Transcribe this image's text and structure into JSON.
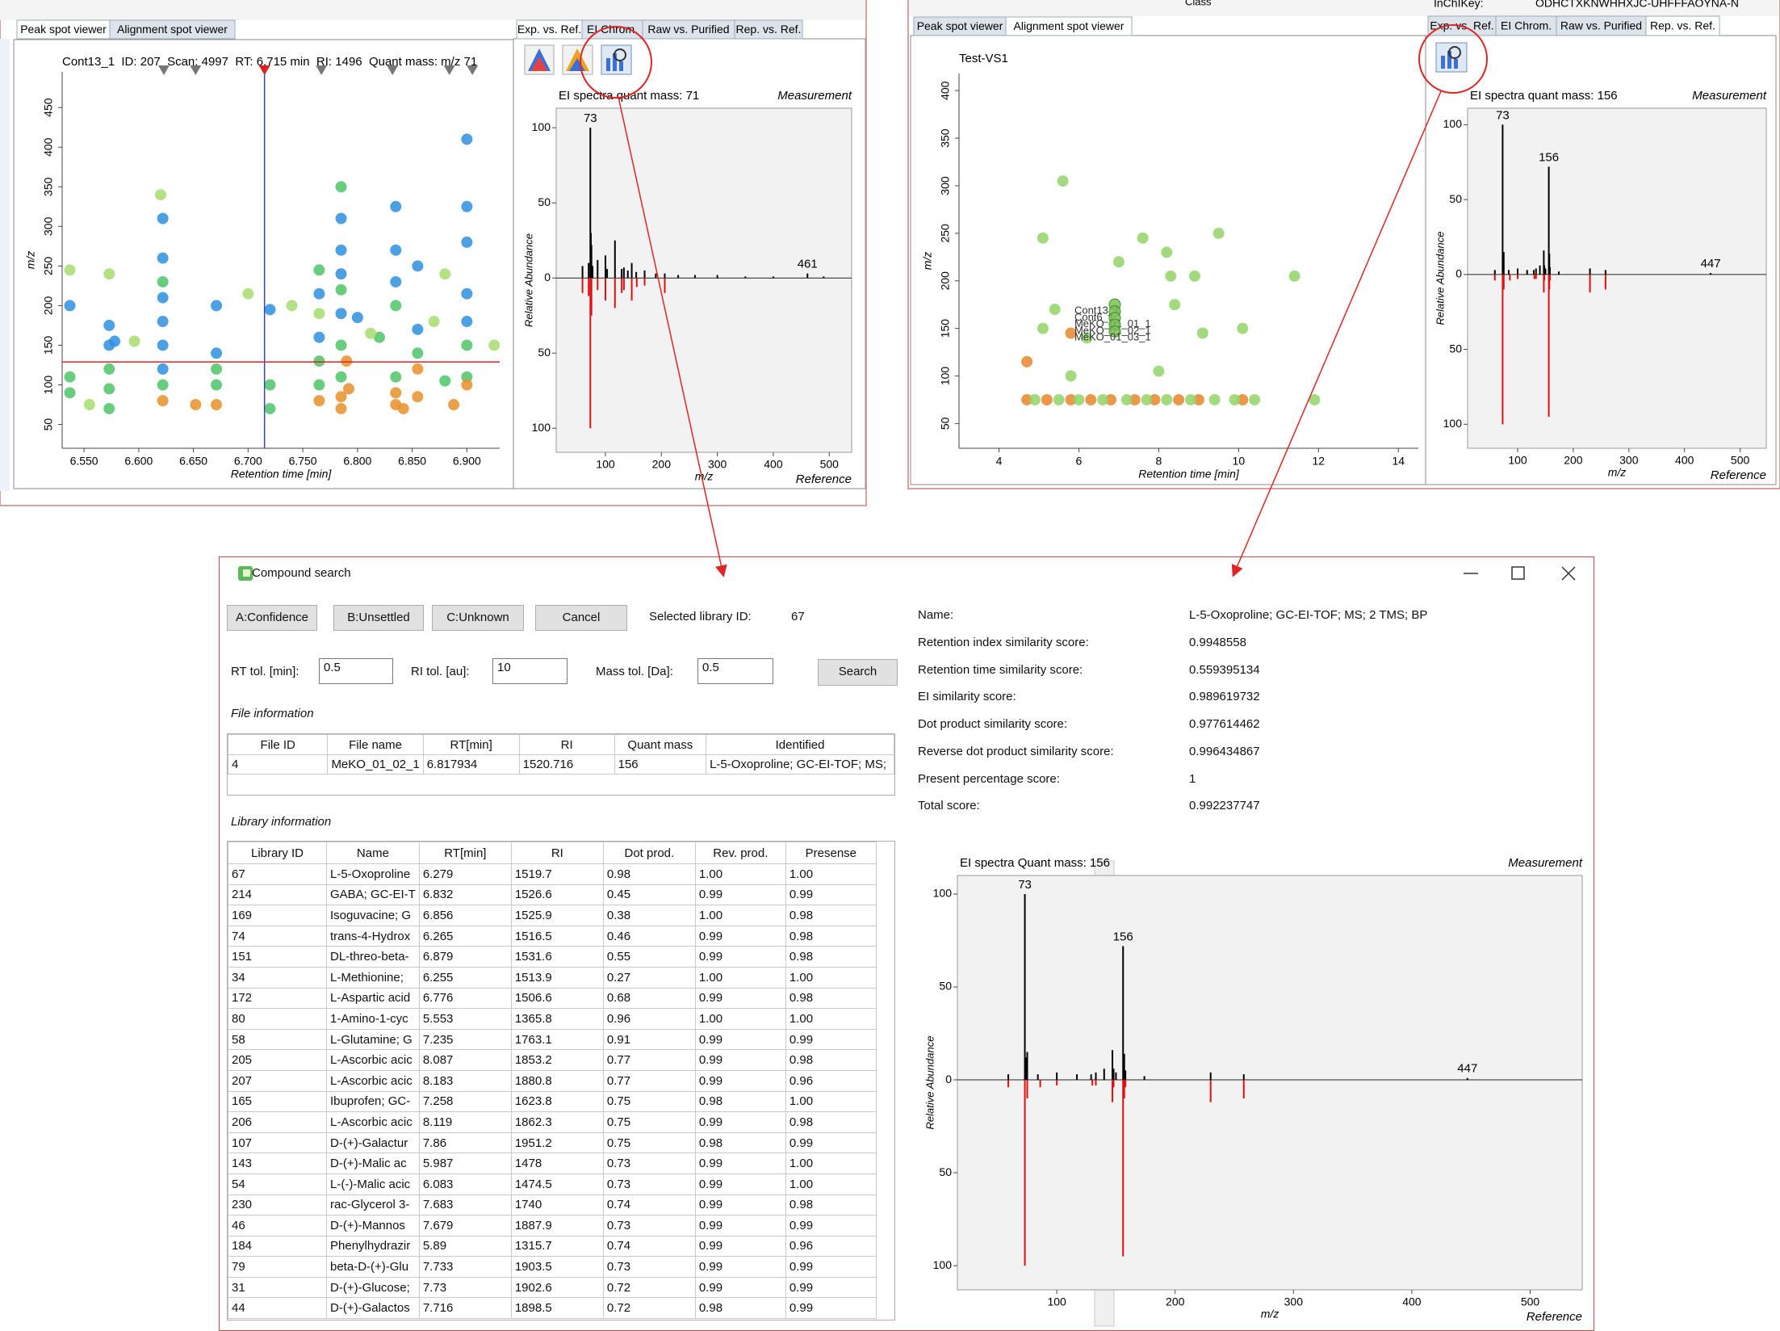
{
  "left_window": {
    "tabs": [
      "Peak spot viewer",
      "Alignment spot viewer"
    ],
    "spectrum_tabs": [
      "Exp. vs. Ref.",
      "EI Chrom.",
      "Raw vs. Purified",
      "Rep. vs. Ref."
    ],
    "scatter": {
      "title": "Cont13_1  ID: 207  Scan: 4997  RT: 6.715 min  RI: 1496  Quant mass: m/z 71",
      "x_label": "Retention time [min]",
      "y_label": "m/z",
      "xlim": [
        6.53,
        6.93
      ],
      "ylim": [
        20,
        495
      ],
      "xticks": [
        {
          "value": 6.55,
          "label": "6.550"
        },
        {
          "value": 6.6,
          "label": "6.600"
        },
        {
          "value": 6.65,
          "label": "6.650"
        },
        {
          "value": 6.7,
          "label": "6.700"
        },
        {
          "value": 6.75,
          "label": "6.750"
        },
        {
          "value": 6.8,
          "label": "6.800"
        },
        {
          "value": 6.85,
          "label": "6.850"
        },
        {
          "value": 6.9,
          "label": "6.900"
        }
      ],
      "yticks": [
        50,
        100,
        150,
        200,
        250,
        300,
        350,
        400,
        450
      ],
      "cursor": {
        "x": 6.715,
        "y": 129
      },
      "markers": [
        6.623,
        6.652,
        6.767,
        6.832,
        6.884,
        6.905
      ],
      "series": [
        {
          "color": "#2f8fe0",
          "x": [
            6.537,
            6.573,
            6.573,
            6.578,
            6.622,
            6.622,
            6.622,
            6.622,
            6.622,
            6.622,
            6.671,
            6.671,
            6.72,
            6.765,
            6.765,
            6.785,
            6.785,
            6.785,
            6.785,
            6.8,
            6.835,
            6.835,
            6.835,
            6.855,
            6.855,
            6.9,
            6.9,
            6.9,
            6.9,
            6.9
          ],
          "y": [
            200,
            175,
            150,
            155,
            310,
            260,
            210,
            180,
            150,
            120,
            200,
            140,
            195,
            215,
            160,
            310,
            270,
            240,
            190,
            185,
            325,
            270,
            230,
            250,
            170,
            410,
            325,
            280,
            215,
            180
          ]
        },
        {
          "color": "#4fc46a",
          "x": [
            6.537,
            6.537,
            6.573,
            6.573,
            6.573,
            6.622,
            6.622,
            6.671,
            6.671,
            6.72,
            6.72,
            6.765,
            6.765,
            6.765,
            6.785,
            6.785,
            6.785,
            6.785,
            6.82,
            6.835,
            6.835,
            6.855,
            6.88,
            6.9,
            6.9
          ],
          "y": [
            110,
            90,
            120,
            95,
            70,
            230,
            100,
            120,
            100,
            100,
            70,
            245,
            130,
            100,
            350,
            220,
            150,
            110,
            160,
            200,
            110,
            140,
            105,
            150,
            110
          ]
        },
        {
          "color": "#e8902a",
          "x": [
            6.622,
            6.652,
            6.671,
            6.765,
            6.785,
            6.785,
            6.79,
            6.792,
            6.835,
            6.835,
            6.842,
            6.855,
            6.855,
            6.888,
            6.9
          ],
          "y": [
            80,
            75,
            75,
            80,
            85,
            70,
            130,
            95,
            90,
            75,
            70,
            120,
            85,
            75,
            100
          ]
        },
        {
          "color": "#a6dc6e",
          "x": [
            6.537,
            6.555,
            6.573,
            6.596,
            6.62,
            6.7,
            6.74,
            6.765,
            6.812,
            6.87,
            6.88,
            6.925
          ],
          "y": [
            245,
            75,
            240,
            155,
            340,
            215,
            200,
            190,
            165,
            180,
            240,
            150
          ]
        }
      ]
    },
    "spectrum": {
      "title": "EI spectra quant mass: 71",
      "x_label": "m/z",
      "y_label": "Relative Abundance",
      "xlim": [
        12,
        540
      ],
      "ylim": [
        -116,
        113
      ],
      "xticks": [
        100,
        200,
        300,
        400,
        500
      ],
      "yticks": [
        {
          "value": -100,
          "label": "100"
        },
        {
          "value": -50,
          "label": "50"
        },
        0,
        50,
        100
      ],
      "peak_labels": [
        73,
        461
      ],
      "series": [
        {
          "name": "Measurement",
          "color": "#000000",
          "x": [
            59,
            70,
            73,
            74,
            75,
            77,
            86,
            100,
            103,
            117,
            129,
            133,
            140,
            147,
            155,
            170,
            190,
            206,
            230,
            260,
            300,
            350,
            400,
            461,
            490
          ],
          "values": [
            8,
            10,
            100,
            30,
            22,
            8,
            12,
            15,
            6,
            25,
            6,
            7,
            5,
            10,
            4,
            5,
            3,
            3,
            2,
            2,
            2,
            1,
            1,
            3,
            1
          ]
        },
        {
          "name": "Reference",
          "color": "#e01010",
          "x": [
            59,
            70,
            73,
            74,
            75,
            86,
            100,
            117,
            129,
            133,
            147,
            156,
            170,
            206
          ],
          "values": [
            -10,
            -12,
            -100,
            -20,
            -25,
            -8,
            -15,
            -20,
            -10,
            -8,
            -15,
            -6,
            -5,
            -10
          ]
        }
      ]
    }
  },
  "right_window": {
    "header": {
      "class_label": "Class",
      "inchikey_label": "InChIKey:",
      "inchikey": "ODHCTXKNWHHXJC-UHFFFAOYNA-N"
    },
    "tabs": [
      "Peak spot viewer",
      "Alignment spot viewer"
    ],
    "spectrum_tabs": [
      "Exp. vs. Ref.",
      "EI Chrom.",
      "Raw vs. Purified",
      "Rep. vs. Ref."
    ],
    "scatter": {
      "title": "Test-VS1",
      "x_label": "Retention time [min]",
      "y_label": "m/z",
      "xlim": [
        3,
        14.5
      ],
      "ylim": [
        24,
        418
      ],
      "xticks": [
        4,
        6,
        8,
        10,
        12,
        14
      ],
      "yticks": [
        50,
        100,
        150,
        200,
        250,
        300,
        350,
        400
      ],
      "series": [
        {
          "color": "#e8862a",
          "x": [
            4.7,
            5.2,
            5.8,
            6.3,
            6.8,
            7.4,
            7.9,
            8.5,
            9.0,
            10.1,
            4.7,
            5.8
          ],
          "y": [
            75,
            75,
            75,
            75,
            75,
            75,
            75,
            75,
            75,
            75,
            115,
            145
          ]
        },
        {
          "color": "#93d46a",
          "x": [
            4.9,
            5.5,
            6.0,
            6.6,
            7.2,
            7.7,
            8.2,
            8.8,
            9.4,
            9.9,
            10.4,
            11.9,
            5.6,
            5.1,
            7.0,
            7.6,
            8.2,
            8.3,
            8.9,
            9.5,
            11.4,
            5.4,
            6.2,
            10.1,
            9.1,
            5.1,
            8.4,
            8.0,
            5.8
          ],
          "y": [
            75,
            75,
            75,
            75,
            75,
            75,
            75,
            75,
            75,
            75,
            75,
            75,
            305,
            245,
            220,
            245,
            230,
            205,
            205,
            250,
            205,
            170,
            140,
            150,
            145,
            150,
            175,
            105,
            100
          ]
        },
        {
          "color": "#7cc257",
          "x": [
            6.9,
            6.9,
            6.9,
            6.9,
            6.9
          ],
          "y": [
            175,
            168,
            161,
            154,
            147
          ],
          "labels": [
            "Cont13_1",
            "Cont6_1",
            "MeKO_01_01_1",
            "MeKO_01_02_1",
            "MeKO_01_03_1"
          ]
        }
      ]
    },
    "spectrum": {
      "title": "EI spectra quant mass: 156",
      "x_label": "m/z",
      "y_label": "Relative Abundance",
      "xlim": [
        10,
        547
      ],
      "ylim": [
        -116,
        111
      ],
      "xticks": [
        100,
        200,
        300,
        400,
        500
      ],
      "yticks": [
        {
          "value": -100,
          "label": "100"
        },
        {
          "value": -50,
          "label": "50"
        },
        0,
        50,
        100
      ],
      "peak_labels": [
        73,
        156,
        447
      ],
      "series": [
        {
          "name": "Measurement",
          "color": "#000000",
          "x": [
            59,
            73,
            74,
            75,
            84,
            100,
            117,
            129,
            133,
            140,
            147,
            148,
            150,
            156,
            157,
            158,
            174,
            230,
            258,
            447
          ],
          "values": [
            3,
            100,
            12,
            15,
            3,
            4,
            3,
            3,
            4,
            6,
            16,
            6,
            4,
            72,
            14,
            5,
            2,
            4,
            3,
            1
          ]
        },
        {
          "name": "Reference",
          "color": "#e01010",
          "x": [
            59,
            73,
            75,
            86,
            100,
            130,
            133,
            147,
            148,
            156,
            157,
            158,
            230,
            258
          ],
          "values": [
            -4,
            -100,
            -10,
            -4,
            -3,
            -3,
            -3,
            -12,
            -4,
            -95,
            -10,
            -4,
            -12,
            -10
          ]
        }
      ]
    }
  },
  "dialog": {
    "title": "Compound search",
    "buttons": [
      "A:Confidence",
      "B:Unsettled",
      "C:Unknown",
      "Cancel"
    ],
    "selected_library_label": "Selected library ID:",
    "selected_library_id": "67",
    "tolerances": [
      {
        "label": "RT tol. [min]:",
        "value": "0.5"
      },
      {
        "label": "RI tol. [au]:",
        "value": "10"
      },
      {
        "label": "Mass tol. [Da]:",
        "value": "0.5"
      }
    ],
    "search_button": "Search",
    "file_section": "File information",
    "file_table": {
      "columns": [
        "File ID",
        "File name",
        "RT[min]",
        "RI",
        "Quant mass",
        "Identified"
      ],
      "rows": [
        [
          "4",
          "MeKO_01_02_1",
          "6.817934",
          "1520.716",
          "156",
          "L-5-Oxoproline; GC-EI-TOF; MS;"
        ]
      ]
    },
    "library_section": "Library information",
    "library_table": {
      "columns": [
        "Library ID",
        "Name",
        "RT[min]",
        "RI",
        "Dot prod.",
        "Rev. prod.",
        "Presense"
      ],
      "rows": [
        [
          "67",
          "L-5-Oxoproline",
          "6.279",
          "1519.7",
          "0.98",
          "1.00",
          "1.00"
        ],
        [
          "214",
          "GABA; GC-EI-T",
          "6.832",
          "1526.6",
          "0.45",
          "0.99",
          "0.99"
        ],
        [
          "169",
          "Isoguvacine; G",
          "6.856",
          "1525.9",
          "0.38",
          "1.00",
          "0.98"
        ],
        [
          "74",
          "trans-4-Hydrox",
          "6.265",
          "1516.5",
          "0.46",
          "0.99",
          "0.98"
        ],
        [
          "151",
          "DL-threo-beta-",
          "6.879",
          "1531.6",
          "0.55",
          "0.99",
          "0.98"
        ],
        [
          "34",
          "L-Methionine;",
          "6.255",
          "1513.9",
          "0.27",
          "1.00",
          "1.00"
        ],
        [
          "172",
          "L-Aspartic acid",
          "6.776",
          "1506.6",
          "0.68",
          "0.99",
          "0.98"
        ],
        [
          "80",
          "1-Amino-1-cyc",
          "5.553",
          "1365.8",
          "0.96",
          "1.00",
          "1.00"
        ],
        [
          "58",
          "L-Glutamine; G",
          "7.235",
          "1763.1",
          "0.91",
          "0.99",
          "0.99"
        ],
        [
          "205",
          "L-Ascorbic acic",
          "8.087",
          "1853.2",
          "0.77",
          "0.99",
          "0.98"
        ],
        [
          "207",
          "L-Ascorbic acic",
          "8.183",
          "1880.8",
          "0.77",
          "0.99",
          "0.96"
        ],
        [
          "165",
          "Ibuprofen; GC-",
          "7.258",
          "1623.8",
          "0.75",
          "0.98",
          "1.00"
        ],
        [
          "206",
          "L-Ascorbic acic",
          "8.119",
          "1862.3",
          "0.75",
          "0.99",
          "0.98"
        ],
        [
          "107",
          "D-(+)-Galactur",
          "7.86",
          "1951.2",
          "0.75",
          "0.98",
          "0.99"
        ],
        [
          "143",
          "D-(+)-Malic ac",
          "5.987",
          "1478",
          "0.73",
          "0.99",
          "1.00"
        ],
        [
          "54",
          "L-(-)-Malic acic",
          "6.083",
          "1474.5",
          "0.73",
          "0.99",
          "1.00"
        ],
        [
          "230",
          "rac-Glycerol 3-",
          "7.683",
          "1740",
          "0.74",
          "0.99",
          "0.98"
        ],
        [
          "46",
          "D-(+)-Mannos",
          "7.679",
          "1887.9",
          "0.73",
          "0.99",
          "0.99"
        ],
        [
          "184",
          "Phenylhydrazir",
          "5.89",
          "1315.7",
          "0.74",
          "0.99",
          "0.96"
        ],
        [
          "79",
          "beta-D-(+)-Glu",
          "7.733",
          "1903.5",
          "0.73",
          "0.99",
          "0.99"
        ],
        [
          "31",
          "D-(+)-Glucose;",
          "7.73",
          "1902.6",
          "0.72",
          "0.99",
          "0.99"
        ],
        [
          "44",
          "D-(+)-Galactos",
          "7.716",
          "1898.5",
          "0.72",
          "0.98",
          "0.99"
        ]
      ]
    },
    "scores": [
      {
        "label": "Name:",
        "value": "L-5-Oxoproline; GC-EI-TOF; MS; 2 TMS; BP"
      },
      {
        "label": "Retention index similarity score:",
        "value": "0.9948558"
      },
      {
        "label": "Retention time similarity score:",
        "value": "0.559395134"
      },
      {
        "label": "EI similarity score:",
        "value": "0.989619732"
      },
      {
        "label": "Dot product similarity score:",
        "value": "0.977614462"
      },
      {
        "label": "Reverse dot product similarity score:",
        "value": "0.996434867"
      },
      {
        "label": "Present percentage score:",
        "value": "1"
      },
      {
        "label": "Total score:",
        "value": "0.992237747"
      }
    ],
    "spectrum": {
      "title": "EI spectra Quant mass: 156",
      "x_label": "m/z",
      "y_label": "Relative Abundance",
      "xlim": [
        16,
        544
      ],
      "ylim": [
        -113,
        110
      ],
      "xticks": [
        100,
        200,
        300,
        400,
        500
      ],
      "yticks": [
        {
          "value": -100,
          "label": "100"
        },
        {
          "value": -50,
          "label": "50"
        },
        0,
        50,
        100
      ],
      "peak_labels": [
        73,
        156,
        447
      ],
      "series": [
        {
          "name": "Measurement",
          "color": "#000000",
          "x": [
            59,
            73,
            74,
            75,
            84,
            100,
            117,
            129,
            133,
            140,
            147,
            148,
            150,
            156,
            157,
            158,
            174,
            230,
            258,
            447
          ],
          "values": [
            3,
            100,
            12,
            15,
            3,
            4,
            3,
            3,
            4,
            6,
            16,
            6,
            4,
            72,
            14,
            5,
            2,
            4,
            3,
            1
          ]
        },
        {
          "name": "Reference",
          "color": "#e01010",
          "x": [
            59,
            73,
            75,
            86,
            100,
            130,
            133,
            147,
            148,
            156,
            157,
            158,
            230,
            258
          ],
          "values": [
            -4,
            -100,
            -10,
            -4,
            -3,
            -3,
            -3,
            -12,
            -4,
            -95,
            -10,
            -4,
            -12,
            -10
          ]
        }
      ]
    }
  }
}
